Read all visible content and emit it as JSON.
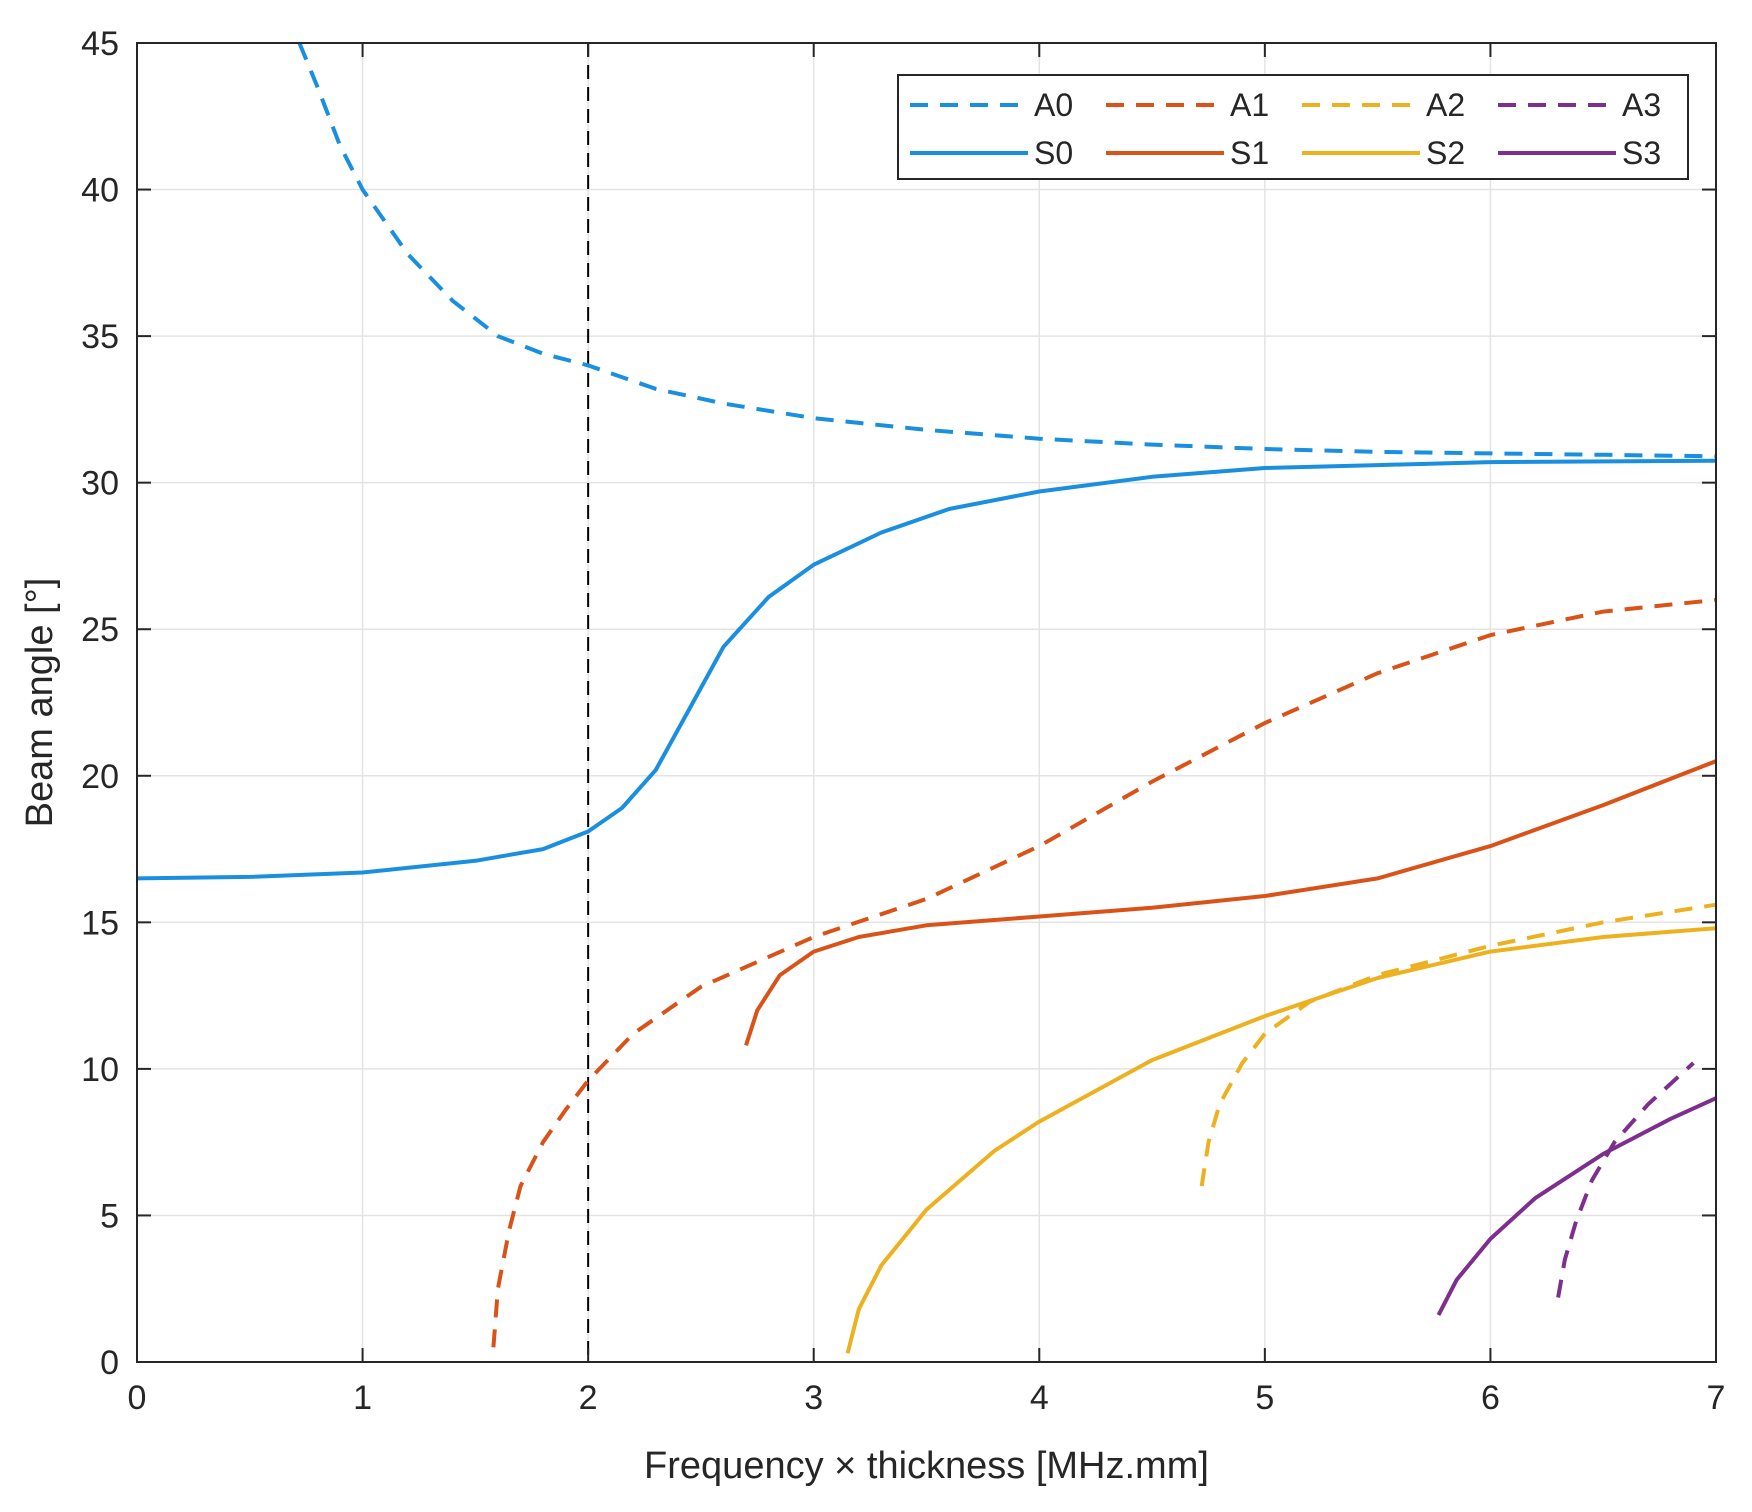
{
  "chart_data": {
    "type": "line",
    "title": "",
    "xlabel": "Frequency × thickness [MHz.mm]",
    "ylabel": "Beam angle [°]",
    "xlim": [
      0,
      7
    ],
    "ylim": [
      0,
      45
    ],
    "xticks": [
      "0",
      "1",
      "2",
      "3",
      "4",
      "5",
      "6",
      "7"
    ],
    "yticks": [
      "0",
      "5",
      "10",
      "15",
      "20",
      "25",
      "30",
      "35",
      "40",
      "45"
    ],
    "grid": true,
    "legend_position": "top-right",
    "reference_line": {
      "x": 2,
      "style": "dashed",
      "color": "#000000"
    },
    "series": [
      {
        "name": "A0",
        "color": "#1a8fe0",
        "style": "dashed",
        "points": [
          [
            0.72,
            45
          ],
          [
            0.8,
            43.5
          ],
          [
            0.9,
            41.5
          ],
          [
            1.0,
            40.0
          ],
          [
            1.2,
            37.8
          ],
          [
            1.4,
            36.2
          ],
          [
            1.6,
            35.0
          ],
          [
            1.8,
            34.4
          ],
          [
            2.0,
            34.0
          ],
          [
            2.3,
            33.2
          ],
          [
            2.6,
            32.7
          ],
          [
            3.0,
            32.2
          ],
          [
            3.5,
            31.8
          ],
          [
            4.0,
            31.5
          ],
          [
            4.5,
            31.3
          ],
          [
            5.0,
            31.15
          ],
          [
            5.5,
            31.05
          ],
          [
            6.0,
            31.0
          ],
          [
            6.5,
            30.95
          ],
          [
            7.0,
            30.9
          ]
        ]
      },
      {
        "name": "A1",
        "color": "#d95319",
        "style": "dashed",
        "points": [
          [
            1.58,
            0.5
          ],
          [
            1.6,
            2.5
          ],
          [
            1.65,
            4.5
          ],
          [
            1.7,
            6.0
          ],
          [
            1.8,
            7.5
          ],
          [
            1.9,
            8.6
          ],
          [
            2.0,
            9.6
          ],
          [
            2.2,
            11.2
          ],
          [
            2.5,
            12.8
          ],
          [
            3.0,
            14.5
          ],
          [
            3.5,
            15.8
          ],
          [
            4.0,
            17.6
          ],
          [
            4.5,
            19.8
          ],
          [
            5.0,
            21.8
          ],
          [
            5.5,
            23.5
          ],
          [
            6.0,
            24.8
          ],
          [
            6.5,
            25.6
          ],
          [
            7.0,
            26.0
          ]
        ]
      },
      {
        "name": "A2",
        "color": "#edb120",
        "style": "dashed",
        "points": [
          [
            4.72,
            6.0
          ],
          [
            4.75,
            7.5
          ],
          [
            4.8,
            8.8
          ],
          [
            4.9,
            10.2
          ],
          [
            5.0,
            11.2
          ],
          [
            5.2,
            12.3
          ],
          [
            5.5,
            13.2
          ],
          [
            6.0,
            14.2
          ],
          [
            6.5,
            15.0
          ],
          [
            7.0,
            15.6
          ]
        ]
      },
      {
        "name": "A3",
        "color": "#7e2f8e",
        "style": "dashed",
        "points": [
          [
            6.3,
            2.2
          ],
          [
            6.33,
            3.5
          ],
          [
            6.38,
            4.8
          ],
          [
            6.45,
            6.2
          ],
          [
            6.55,
            7.5
          ],
          [
            6.7,
            8.8
          ],
          [
            6.9,
            10.2
          ]
        ]
      },
      {
        "name": "S0",
        "color": "#1a8fe0",
        "style": "solid",
        "points": [
          [
            0,
            16.5
          ],
          [
            0.5,
            16.55
          ],
          [
            1.0,
            16.7
          ],
          [
            1.5,
            17.1
          ],
          [
            1.8,
            17.5
          ],
          [
            2.0,
            18.1
          ],
          [
            2.15,
            18.9
          ],
          [
            2.3,
            20.2
          ],
          [
            2.45,
            22.3
          ],
          [
            2.6,
            24.4
          ],
          [
            2.8,
            26.1
          ],
          [
            3.0,
            27.2
          ],
          [
            3.3,
            28.3
          ],
          [
            3.6,
            29.1
          ],
          [
            4.0,
            29.7
          ],
          [
            4.5,
            30.2
          ],
          [
            5.0,
            30.5
          ],
          [
            5.5,
            30.6
          ],
          [
            6.0,
            30.7
          ],
          [
            7.0,
            30.75
          ]
        ]
      },
      {
        "name": "S1",
        "color": "#d95319",
        "style": "solid",
        "points": [
          [
            2.7,
            10.8
          ],
          [
            2.75,
            12.0
          ],
          [
            2.85,
            13.2
          ],
          [
            3.0,
            14.0
          ],
          [
            3.2,
            14.5
          ],
          [
            3.5,
            14.9
          ],
          [
            4.0,
            15.2
          ],
          [
            4.5,
            15.5
          ],
          [
            5.0,
            15.9
          ],
          [
            5.5,
            16.5
          ],
          [
            6.0,
            17.6
          ],
          [
            6.5,
            19.0
          ],
          [
            7.0,
            20.5
          ]
        ]
      },
      {
        "name": "S2",
        "color": "#edb120",
        "style": "solid",
        "points": [
          [
            3.15,
            0.3
          ],
          [
            3.2,
            1.8
          ],
          [
            3.3,
            3.3
          ],
          [
            3.5,
            5.2
          ],
          [
            3.8,
            7.2
          ],
          [
            4.0,
            8.2
          ],
          [
            4.5,
            10.3
          ],
          [
            5.0,
            11.8
          ],
          [
            5.5,
            13.1
          ],
          [
            6.0,
            14.0
          ],
          [
            6.5,
            14.5
          ],
          [
            7.0,
            14.8
          ]
        ]
      },
      {
        "name": "S3",
        "color": "#7e2f8e",
        "style": "solid",
        "points": [
          [
            5.77,
            1.6
          ],
          [
            5.85,
            2.8
          ],
          [
            6.0,
            4.2
          ],
          [
            6.2,
            5.6
          ],
          [
            6.5,
            7.1
          ],
          [
            6.8,
            8.3
          ],
          [
            7.0,
            9.0
          ]
        ]
      }
    ],
    "legend_order": [
      "A0",
      "A1",
      "A2",
      "A3",
      "S0",
      "S1",
      "S2",
      "S3"
    ]
  }
}
